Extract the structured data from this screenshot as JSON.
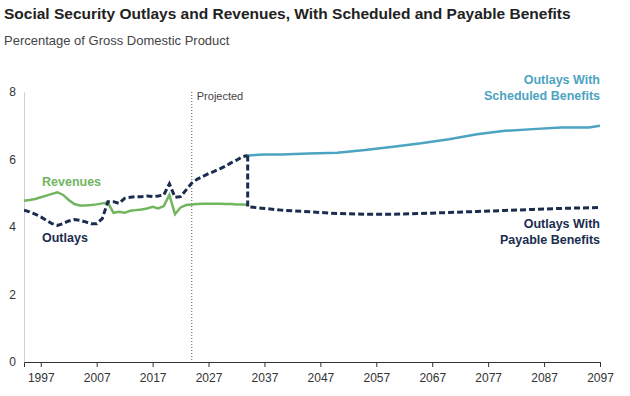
{
  "chart_data": {
    "type": "line",
    "title": "Social Security Outlays and Revenues, With Scheduled and Payable Benefits",
    "subtitle": "Percentage of Gross Domestic Product",
    "xlim": [
      1994,
      2097
    ],
    "xticks": [
      1997,
      2007,
      2017,
      2027,
      2037,
      2047,
      2057,
      2067,
      2077,
      2087,
      2097
    ],
    "ylim": [
      0,
      8
    ],
    "yticks": [
      0,
      2,
      4,
      6,
      8
    ],
    "grid": false,
    "annotations": [
      {
        "text": "Projected",
        "x": 2024
      }
    ],
    "series": [
      {
        "name": "Revenues",
        "color": "#72b55f",
        "line_style": "solid",
        "x": [
          1994,
          1995,
          1996,
          1997,
          1998,
          1999,
          2000,
          2001,
          2002,
          2003,
          2004,
          2005,
          2006,
          2007,
          2008,
          2009,
          2010,
          2011,
          2012,
          2013,
          2014,
          2015,
          2016,
          2017,
          2018,
          2019,
          2020,
          2021,
          2022,
          2023,
          2024,
          2025,
          2026,
          2027,
          2028,
          2029,
          2030,
          2031,
          2032,
          2033,
          2034
        ],
        "values": [
          4.78,
          4.8,
          4.83,
          4.88,
          4.93,
          4.98,
          5.03,
          4.95,
          4.8,
          4.68,
          4.64,
          4.64,
          4.65,
          4.67,
          4.7,
          4.72,
          4.42,
          4.45,
          4.42,
          4.48,
          4.5,
          4.52,
          4.55,
          4.6,
          4.55,
          4.62,
          4.95,
          4.38,
          4.58,
          4.65,
          4.67,
          4.68,
          4.69,
          4.69,
          4.69,
          4.69,
          4.68,
          4.68,
          4.67,
          4.67,
          4.66
        ]
      },
      {
        "name": "Outlays",
        "color": "#1b2d4f",
        "line_style": "dashed",
        "x": [
          1994,
          1995,
          1996,
          1997,
          1998,
          1999,
          2000,
          2001,
          2002,
          2003,
          2004,
          2005,
          2006,
          2007,
          2008,
          2009,
          2010,
          2011,
          2012,
          2013,
          2014,
          2015,
          2016,
          2017,
          2018,
          2019,
          2020,
          2021,
          2022,
          2023,
          2024,
          2025,
          2026,
          2027,
          2028,
          2029,
          2030,
          2031,
          2032,
          2033,
          2034
        ],
        "values": [
          4.5,
          4.45,
          4.38,
          4.3,
          4.2,
          4.1,
          4.05,
          4.1,
          4.18,
          4.22,
          4.2,
          4.15,
          4.1,
          4.1,
          4.25,
          4.75,
          4.75,
          4.7,
          4.85,
          4.88,
          4.9,
          4.9,
          4.92,
          4.9,
          4.92,
          4.95,
          5.28,
          4.88,
          4.9,
          5.1,
          5.3,
          5.42,
          5.5,
          5.58,
          5.65,
          5.72,
          5.8,
          5.9,
          5.98,
          6.08,
          6.12
        ]
      },
      {
        "name": "Outlays With Scheduled Benefits",
        "color": "#4da3c2",
        "line_style": "solid",
        "x": [
          2034,
          2037,
          2040,
          2045,
          2050,
          2055,
          2060,
          2065,
          2070,
          2075,
          2080,
          2085,
          2090,
          2095,
          2097
        ],
        "values": [
          6.12,
          6.15,
          6.15,
          6.18,
          6.2,
          6.28,
          6.38,
          6.48,
          6.6,
          6.75,
          6.85,
          6.9,
          6.95,
          6.95,
          7.0
        ]
      },
      {
        "name": "Outlays With Payable Benefits",
        "color": "#1b2d4f",
        "line_style": "dashed",
        "x": [
          2034,
          2034,
          2037,
          2040,
          2045,
          2050,
          2055,
          2060,
          2065,
          2070,
          2075,
          2080,
          2085,
          2090,
          2095,
          2097
        ],
        "values": [
          6.12,
          4.6,
          4.55,
          4.5,
          4.45,
          4.4,
          4.38,
          4.38,
          4.4,
          4.43,
          4.46,
          4.49,
          4.52,
          4.55,
          4.57,
          4.58
        ]
      }
    ]
  }
}
